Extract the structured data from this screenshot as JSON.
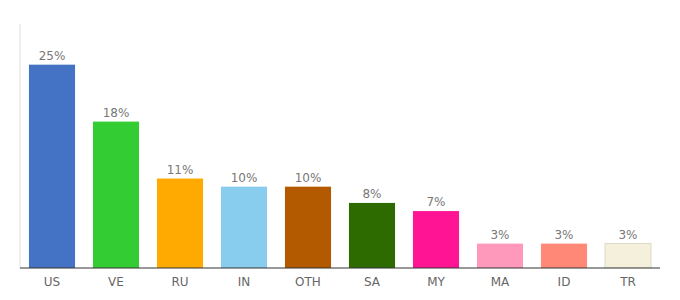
{
  "chart_data": {
    "type": "bar",
    "categories": [
      "US",
      "VE",
      "RU",
      "IN",
      "OTH",
      "SA",
      "MY",
      "MA",
      "ID",
      "TR"
    ],
    "values": [
      25,
      18,
      11,
      10,
      10,
      8,
      7,
      3,
      3,
      3
    ],
    "value_labels": [
      "25%",
      "18%",
      "11%",
      "10%",
      "10%",
      "8%",
      "7%",
      "3%",
      "3%",
      "3%"
    ],
    "colors": [
      "#4472c4",
      "#33cc33",
      "#ffaa00",
      "#88ccee",
      "#b35a00",
      "#2d6a00",
      "#ff1493",
      "#ff99bb",
      "#ff8877",
      "#f5f0dc"
    ],
    "ylim": [
      0,
      30
    ],
    "data_labels": true,
    "tick_labels": "x",
    "grid": false
  }
}
